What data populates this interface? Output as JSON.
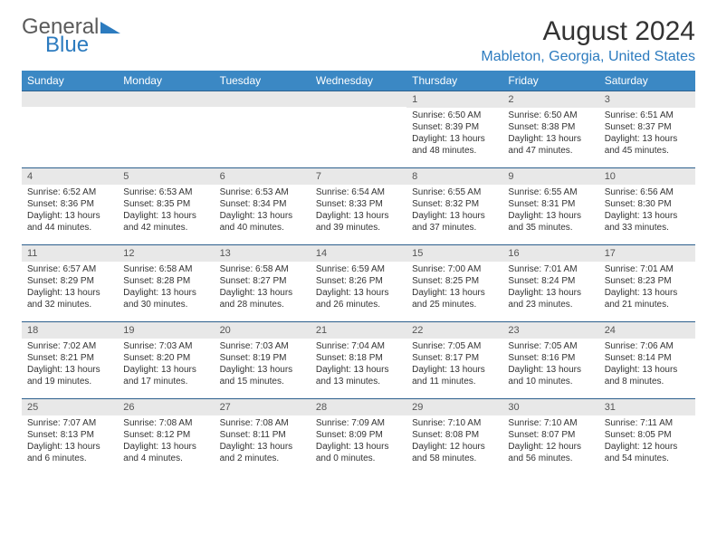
{
  "logo": {
    "word1": "General",
    "word2": "Blue",
    "word1_color": "#5b5b5b",
    "word2_color": "#2c7bbf",
    "triangle_color": "#2c7bbf"
  },
  "title": "August 2024",
  "location": "Mableton, Georgia, United States",
  "colors": {
    "header_bg": "#3b88c4",
    "header_text": "#ffffff",
    "daynum_bg": "#e8e8e8",
    "week_border": "#2c5f8d",
    "location_color": "#2c7bbf"
  },
  "day_headers": [
    "Sunday",
    "Monday",
    "Tuesday",
    "Wednesday",
    "Thursday",
    "Friday",
    "Saturday"
  ],
  "weeks": [
    [
      {
        "num": "",
        "sunrise": "",
        "sunset": "",
        "daylight": ""
      },
      {
        "num": "",
        "sunrise": "",
        "sunset": "",
        "daylight": ""
      },
      {
        "num": "",
        "sunrise": "",
        "sunset": "",
        "daylight": ""
      },
      {
        "num": "",
        "sunrise": "",
        "sunset": "",
        "daylight": ""
      },
      {
        "num": "1",
        "sunrise": "Sunrise: 6:50 AM",
        "sunset": "Sunset: 8:39 PM",
        "daylight": "Daylight: 13 hours and 48 minutes."
      },
      {
        "num": "2",
        "sunrise": "Sunrise: 6:50 AM",
        "sunset": "Sunset: 8:38 PM",
        "daylight": "Daylight: 13 hours and 47 minutes."
      },
      {
        "num": "3",
        "sunrise": "Sunrise: 6:51 AM",
        "sunset": "Sunset: 8:37 PM",
        "daylight": "Daylight: 13 hours and 45 minutes."
      }
    ],
    [
      {
        "num": "4",
        "sunrise": "Sunrise: 6:52 AM",
        "sunset": "Sunset: 8:36 PM",
        "daylight": "Daylight: 13 hours and 44 minutes."
      },
      {
        "num": "5",
        "sunrise": "Sunrise: 6:53 AM",
        "sunset": "Sunset: 8:35 PM",
        "daylight": "Daylight: 13 hours and 42 minutes."
      },
      {
        "num": "6",
        "sunrise": "Sunrise: 6:53 AM",
        "sunset": "Sunset: 8:34 PM",
        "daylight": "Daylight: 13 hours and 40 minutes."
      },
      {
        "num": "7",
        "sunrise": "Sunrise: 6:54 AM",
        "sunset": "Sunset: 8:33 PM",
        "daylight": "Daylight: 13 hours and 39 minutes."
      },
      {
        "num": "8",
        "sunrise": "Sunrise: 6:55 AM",
        "sunset": "Sunset: 8:32 PM",
        "daylight": "Daylight: 13 hours and 37 minutes."
      },
      {
        "num": "9",
        "sunrise": "Sunrise: 6:55 AM",
        "sunset": "Sunset: 8:31 PM",
        "daylight": "Daylight: 13 hours and 35 minutes."
      },
      {
        "num": "10",
        "sunrise": "Sunrise: 6:56 AM",
        "sunset": "Sunset: 8:30 PM",
        "daylight": "Daylight: 13 hours and 33 minutes."
      }
    ],
    [
      {
        "num": "11",
        "sunrise": "Sunrise: 6:57 AM",
        "sunset": "Sunset: 8:29 PM",
        "daylight": "Daylight: 13 hours and 32 minutes."
      },
      {
        "num": "12",
        "sunrise": "Sunrise: 6:58 AM",
        "sunset": "Sunset: 8:28 PM",
        "daylight": "Daylight: 13 hours and 30 minutes."
      },
      {
        "num": "13",
        "sunrise": "Sunrise: 6:58 AM",
        "sunset": "Sunset: 8:27 PM",
        "daylight": "Daylight: 13 hours and 28 minutes."
      },
      {
        "num": "14",
        "sunrise": "Sunrise: 6:59 AM",
        "sunset": "Sunset: 8:26 PM",
        "daylight": "Daylight: 13 hours and 26 minutes."
      },
      {
        "num": "15",
        "sunrise": "Sunrise: 7:00 AM",
        "sunset": "Sunset: 8:25 PM",
        "daylight": "Daylight: 13 hours and 25 minutes."
      },
      {
        "num": "16",
        "sunrise": "Sunrise: 7:01 AM",
        "sunset": "Sunset: 8:24 PM",
        "daylight": "Daylight: 13 hours and 23 minutes."
      },
      {
        "num": "17",
        "sunrise": "Sunrise: 7:01 AM",
        "sunset": "Sunset: 8:23 PM",
        "daylight": "Daylight: 13 hours and 21 minutes."
      }
    ],
    [
      {
        "num": "18",
        "sunrise": "Sunrise: 7:02 AM",
        "sunset": "Sunset: 8:21 PM",
        "daylight": "Daylight: 13 hours and 19 minutes."
      },
      {
        "num": "19",
        "sunrise": "Sunrise: 7:03 AM",
        "sunset": "Sunset: 8:20 PM",
        "daylight": "Daylight: 13 hours and 17 minutes."
      },
      {
        "num": "20",
        "sunrise": "Sunrise: 7:03 AM",
        "sunset": "Sunset: 8:19 PM",
        "daylight": "Daylight: 13 hours and 15 minutes."
      },
      {
        "num": "21",
        "sunrise": "Sunrise: 7:04 AM",
        "sunset": "Sunset: 8:18 PM",
        "daylight": "Daylight: 13 hours and 13 minutes."
      },
      {
        "num": "22",
        "sunrise": "Sunrise: 7:05 AM",
        "sunset": "Sunset: 8:17 PM",
        "daylight": "Daylight: 13 hours and 11 minutes."
      },
      {
        "num": "23",
        "sunrise": "Sunrise: 7:05 AM",
        "sunset": "Sunset: 8:16 PM",
        "daylight": "Daylight: 13 hours and 10 minutes."
      },
      {
        "num": "24",
        "sunrise": "Sunrise: 7:06 AM",
        "sunset": "Sunset: 8:14 PM",
        "daylight": "Daylight: 13 hours and 8 minutes."
      }
    ],
    [
      {
        "num": "25",
        "sunrise": "Sunrise: 7:07 AM",
        "sunset": "Sunset: 8:13 PM",
        "daylight": "Daylight: 13 hours and 6 minutes."
      },
      {
        "num": "26",
        "sunrise": "Sunrise: 7:08 AM",
        "sunset": "Sunset: 8:12 PM",
        "daylight": "Daylight: 13 hours and 4 minutes."
      },
      {
        "num": "27",
        "sunrise": "Sunrise: 7:08 AM",
        "sunset": "Sunset: 8:11 PM",
        "daylight": "Daylight: 13 hours and 2 minutes."
      },
      {
        "num": "28",
        "sunrise": "Sunrise: 7:09 AM",
        "sunset": "Sunset: 8:09 PM",
        "daylight": "Daylight: 13 hours and 0 minutes."
      },
      {
        "num": "29",
        "sunrise": "Sunrise: 7:10 AM",
        "sunset": "Sunset: 8:08 PM",
        "daylight": "Daylight: 12 hours and 58 minutes."
      },
      {
        "num": "30",
        "sunrise": "Sunrise: 7:10 AM",
        "sunset": "Sunset: 8:07 PM",
        "daylight": "Daylight: 12 hours and 56 minutes."
      },
      {
        "num": "31",
        "sunrise": "Sunrise: 7:11 AM",
        "sunset": "Sunset: 8:05 PM",
        "daylight": "Daylight: 12 hours and 54 minutes."
      }
    ]
  ]
}
